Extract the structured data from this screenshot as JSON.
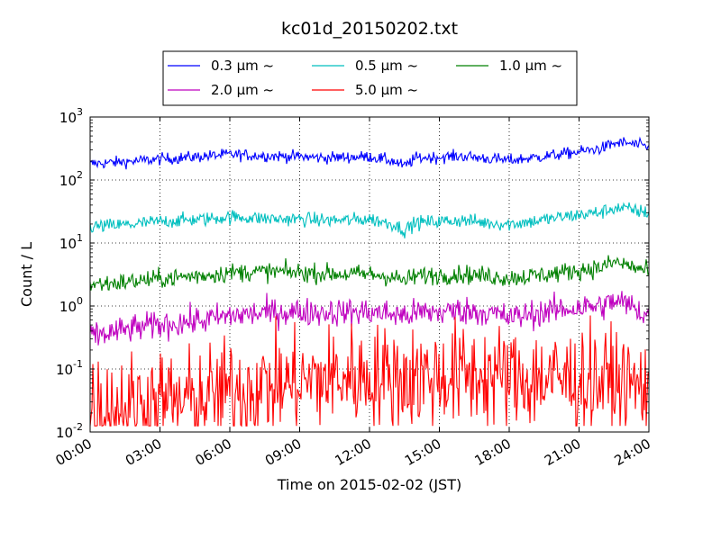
{
  "chart_data": {
    "type": "line",
    "title": "kc01d_20150202.txt",
    "xlabel": "Time on 2015-02-02 (JST)",
    "ylabel": "Count / L",
    "x_range_hours": [
      0,
      24
    ],
    "x_ticks": [
      "00:00",
      "03:00",
      "06:00",
      "09:00",
      "12:00",
      "15:00",
      "18:00",
      "21:00",
      "24:00"
    ],
    "y_scale": "log",
    "ylim": [
      0.01,
      1000
    ],
    "y_ticks": [
      {
        "value": 0.01,
        "base": "10",
        "exp": "-2"
      },
      {
        "value": 0.1,
        "base": "10",
        "exp": "-1"
      },
      {
        "value": 1,
        "base": "10",
        "exp": "0"
      },
      {
        "value": 10,
        "base": "10",
        "exp": "1"
      },
      {
        "value": 100,
        "base": "10",
        "exp": "2"
      },
      {
        "value": 1000,
        "base": "10",
        "exp": "3"
      }
    ],
    "grid": true,
    "legend_position": "top-center",
    "x_hours": [
      0,
      1,
      2,
      3,
      4,
      5,
      6,
      7,
      8,
      9,
      10,
      11,
      12,
      13,
      13.5,
      14,
      15,
      16,
      17,
      18,
      19,
      20,
      21,
      22,
      22.5,
      23,
      24
    ],
    "series": [
      {
        "name": "0.3 μm ~",
        "color": "#0000ff",
        "noise": 0.05,
        "values": [
          180,
          190,
          200,
          215,
          225,
          240,
          255,
          245,
          240,
          235,
          225,
          230,
          235,
          200,
          165,
          225,
          230,
          240,
          220,
          205,
          225,
          250,
          280,
          320,
          380,
          390,
          330
        ]
      },
      {
        "name": "0.5 μm ~",
        "color": "#00bfbf",
        "noise": 0.06,
        "values": [
          18,
          19,
          20,
          22,
          23,
          24,
          26,
          25,
          24,
          24,
          23,
          23,
          24,
          20,
          16,
          21,
          22,
          23,
          21,
          20,
          22,
          25,
          28,
          31,
          36,
          35,
          30
        ]
      },
      {
        "name": "1.0 μm ~",
        "color": "#008000",
        "noise": 0.08,
        "values": [
          2.2,
          2.3,
          2.5,
          2.7,
          2.9,
          3.1,
          3.4,
          3.5,
          3.5,
          3.4,
          3.3,
          3.2,
          3.2,
          2.9,
          2.5,
          3.0,
          3.1,
          3.2,
          3.0,
          2.8,
          3.0,
          3.3,
          3.7,
          4.1,
          5.0,
          4.5,
          3.5
        ]
      },
      {
        "name": "2.0 μm ~",
        "color": "#bf00bf",
        "noise": 0.12,
        "values": [
          0.33,
          0.38,
          0.45,
          0.5,
          0.55,
          0.6,
          0.7,
          0.75,
          0.8,
          0.8,
          0.8,
          0.8,
          0.8,
          0.75,
          0.7,
          0.78,
          0.8,
          0.85,
          0.8,
          0.65,
          0.75,
          0.85,
          0.95,
          1.0,
          1.2,
          1.1,
          0.7
        ]
      },
      {
        "name": "5.0 μm ~",
        "color": "#ff0000",
        "noise": 0.45,
        "values": [
          0.025,
          0.025,
          0.028,
          0.03,
          0.03,
          0.035,
          0.045,
          0.05,
          0.055,
          0.06,
          0.07,
          0.075,
          0.075,
          0.075,
          0.07,
          0.075,
          0.075,
          0.08,
          0.08,
          0.07,
          0.07,
          0.07,
          0.065,
          0.065,
          0.06,
          0.055,
          0.05
        ]
      }
    ]
  }
}
